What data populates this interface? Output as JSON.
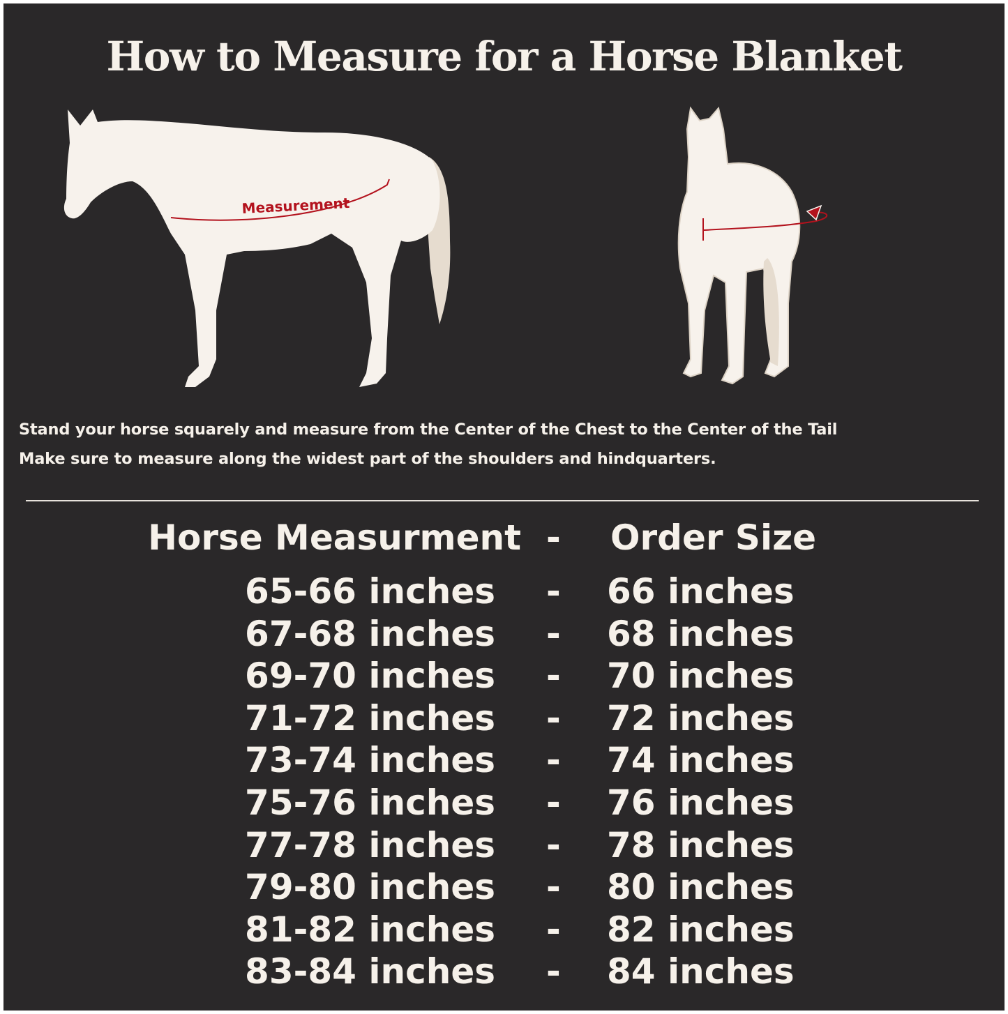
{
  "title": "How to Measure for a Horse Blanket",
  "diagram": {
    "side_label": "Measurement",
    "accent_color": "#b3121d",
    "horse_color": "#f7f2ec",
    "tail_color": "#e6dccf",
    "background": "#2a2829"
  },
  "instructions": [
    "Stand your horse squarely and measure from the Center of the Chest to the Center of the Tail",
    "Make sure to measure along the widest part of the shoulders and hindquarters."
  ],
  "table": {
    "header": {
      "left": "Horse Measurment",
      "sep": "-",
      "right": "Order Size"
    },
    "rows": [
      {
        "measurement": "65-66 inches",
        "sep": "-",
        "size": "66 inches"
      },
      {
        "measurement": "67-68 inches",
        "sep": "-",
        "size": "68 inches"
      },
      {
        "measurement": "69-70 inches",
        "sep": "-",
        "size": "70 inches"
      },
      {
        "measurement": "71-72 inches",
        "sep": "-",
        "size": "72 inches"
      },
      {
        "measurement": "73-74 inches",
        "sep": "-",
        "size": "74 inches"
      },
      {
        "measurement": "75-76 inches",
        "sep": "-",
        "size": "76 inches"
      },
      {
        "measurement": "77-78 inches",
        "sep": "-",
        "size": "78 inches"
      },
      {
        "measurement": "79-80 inches",
        "sep": "-",
        "size": "80 inches"
      },
      {
        "measurement": "81-82 inches",
        "sep": "-",
        "size": "82 inches"
      },
      {
        "measurement": "83-84 inches",
        "sep": "-",
        "size": "84 inches"
      }
    ]
  }
}
